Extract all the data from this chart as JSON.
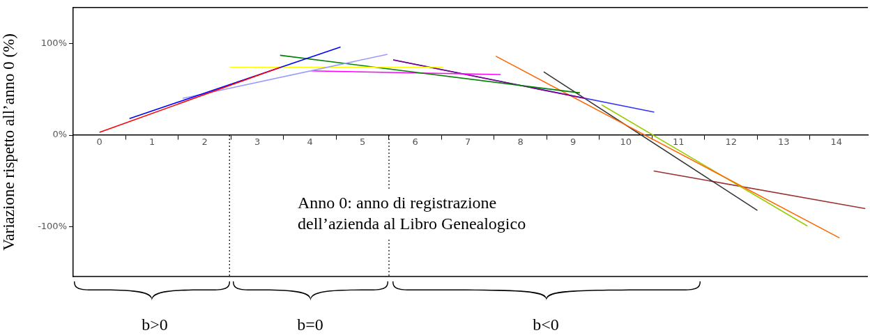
{
  "chart_data": {
    "type": "line",
    "ylabel": "Variazione rispetto all’anno 0 (%)",
    "xlim": [
      -0.5,
      14.6
    ],
    "xticks": [
      {
        "value": 0,
        "label": "0"
      },
      {
        "value": 1,
        "label": "1"
      },
      {
        "value": 2,
        "label": "2"
      },
      {
        "value": 3,
        "label": "3"
      },
      {
        "value": 4,
        "label": "4"
      },
      {
        "value": 5,
        "label": "5"
      },
      {
        "value": 6,
        "label": "6"
      },
      {
        "value": 7,
        "label": "7"
      },
      {
        "value": 8,
        "label": "8"
      },
      {
        "value": 9,
        "label": "9"
      },
      {
        "value": 10,
        "label": "10"
      },
      {
        "value": 11,
        "label": "11"
      },
      {
        "value": 12,
        "label": "12"
      },
      {
        "value": 13,
        "label": "13"
      },
      {
        "value": 14,
        "label": "14"
      },
      {
        "value": 0.5,
        "label": null
      },
      {
        "value": 1.5,
        "label": null
      },
      {
        "value": 2.5,
        "label": null
      },
      {
        "value": 3.5,
        "label": null
      },
      {
        "value": 4.5,
        "label": null
      },
      {
        "value": 5.5,
        "label": null
      },
      {
        "value": 6.5,
        "label": null
      },
      {
        "value": 7.5,
        "label": null
      },
      {
        "value": 8.5,
        "label": null
      },
      {
        "value": 9.5,
        "label": null
      },
      {
        "value": 10.5,
        "label": null
      },
      {
        "value": 11.5,
        "label": null
      },
      {
        "value": 12.5,
        "label": null
      },
      {
        "value": 13.5,
        "label": null
      }
    ],
    "ylim": [
      -154,
      139
    ],
    "yticks": [
      {
        "value": -100,
        "label": "-100%"
      },
      {
        "value": 0,
        "label": "0%"
      },
      {
        "value": 100,
        "label": "100%"
      }
    ],
    "grid": false,
    "legend": false,
    "marker": "none",
    "line_style": "solid",
    "series": [
      {
        "color": "#ff0000",
        "x": [
          0,
          3.44
        ],
        "values": [
          3,
          74
        ]
      },
      {
        "color": "#0000ff",
        "x": [
          0.57,
          4.58
        ],
        "values": [
          18,
          96
        ]
      },
      {
        "color": "#9999ff",
        "x": [
          1.58,
          5.47
        ],
        "values": [
          40,
          88
        ]
      },
      {
        "color": "#ffff00",
        "x": [
          2.47,
          6.52
        ],
        "values": [
          74,
          74
        ]
      },
      {
        "color": "#008000",
        "x": [
          3.43,
          9.13
        ],
        "values": [
          87,
          46
        ]
      },
      {
        "color": "#ff00ff",
        "x": [
          4.02,
          7.62
        ],
        "values": [
          70,
          66
        ]
      },
      {
        "color": "#800080",
        "x": [
          5.58,
          9.22
        ],
        "values": [
          82,
          40
        ]
      },
      {
        "color": "#3333ff",
        "x": [
          5.58,
          10.54
        ],
        "values": [
          82,
          25
        ]
      },
      {
        "color": "#ff6600",
        "x": [
          7.53,
          14.06
        ],
        "values": [
          86,
          -112
        ]
      },
      {
        "color": "#333333",
        "x": [
          8.44,
          12.5
        ],
        "values": [
          69,
          -82
        ]
      },
      {
        "color": "#99cc00",
        "x": [
          9.54,
          13.45
        ],
        "values": [
          33,
          -99
        ]
      },
      {
        "color": "#993333",
        "x": [
          10.53,
          14.55
        ],
        "values": [
          -39,
          -80
        ]
      }
    ],
    "ref_lines": [
      {
        "axis": "x",
        "value": 2.47,
        "color": "#000000",
        "line_style": "dotted"
      },
      {
        "axis": "x",
        "value": 5.5,
        "color": "#000000",
        "line_style": "dotted"
      }
    ],
    "annotations": [
      "Anno 0: anno di registrazione\ndell’azienda al Libro Genealogico",
      "b>0",
      "b=0",
      "b<0"
    ]
  }
}
